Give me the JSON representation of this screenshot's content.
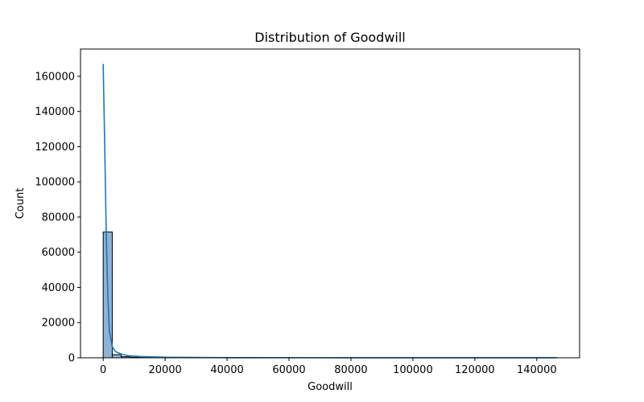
{
  "chart_data": {
    "type": "bar",
    "title": "Distribution of Goodwill",
    "xlabel": "Goodwill",
    "ylabel": "Count",
    "xlim": [
      -7325,
      153825
    ],
    "ylim": [
      0,
      175500
    ],
    "x_ticks": [
      0,
      20000,
      40000,
      60000,
      80000,
      100000,
      120000,
      140000
    ],
    "y_ticks": [
      0,
      20000,
      40000,
      60000,
      80000,
      100000,
      120000,
      140000,
      160000
    ],
    "bins": [
      {
        "x0": 0,
        "x1": 2930,
        "count": 71500
      },
      {
        "x0": 2930,
        "x1": 5860,
        "count": 1800
      },
      {
        "x0": 5860,
        "x1": 8790,
        "count": 600
      },
      {
        "x0": 8790,
        "x1": 11720,
        "count": 300
      },
      {
        "x0": 11720,
        "x1": 14650,
        "count": 150
      },
      {
        "x0": 14650,
        "x1": 17580,
        "count": 80
      },
      {
        "x0": 17580,
        "x1": 20510,
        "count": 50
      },
      {
        "x0": 20510,
        "x1": 23440,
        "count": 30
      }
    ],
    "kde": {
      "x": [
        0,
        500,
        1000,
        1500,
        2000,
        3000,
        4000,
        6000,
        8000,
        12000,
        20000,
        40000,
        80000,
        146500
      ],
      "y": [
        167000,
        120000,
        70000,
        35000,
        15000,
        6000,
        3500,
        2000,
        1200,
        700,
        300,
        100,
        30,
        10
      ]
    },
    "colors": {
      "bar_fill": "#8fb3d4",
      "bar_edge": "#000000",
      "kde_line": "#1f77b4"
    },
    "grid": false,
    "legend": "none"
  }
}
